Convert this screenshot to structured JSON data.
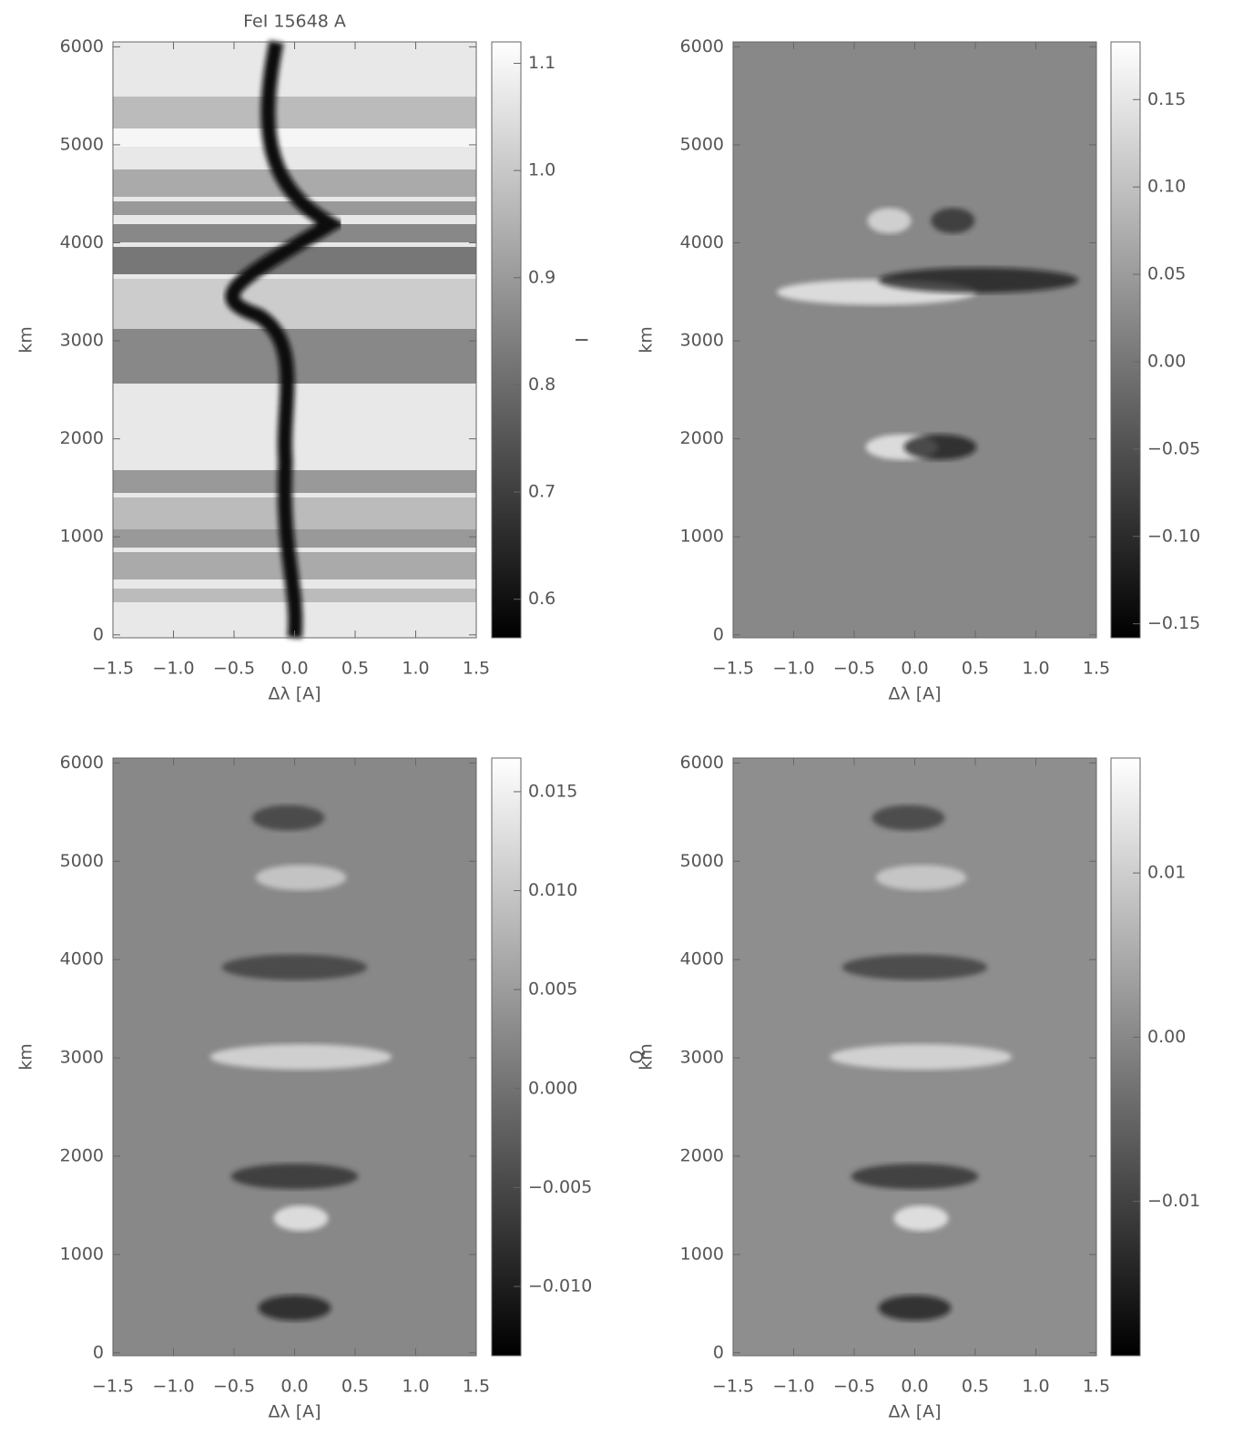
{
  "chart_data": [
    {
      "type": "heatmap",
      "title": "FeI 15648 A",
      "xlabel": "Δλ [A]",
      "ylabel": "km",
      "colorbar_label": "I",
      "xlim": [
        -1.5,
        1.5
      ],
      "xticks": [
        {
          "value": -1.5,
          "label": "−1.5"
        },
        {
          "value": -1,
          "label": "−1.0"
        },
        {
          "value": -0.5,
          "label": "−0.5"
        },
        {
          "value": 0,
          "label": "0.0"
        },
        {
          "value": 0.5,
          "label": "0.5"
        },
        {
          "value": 1,
          "label": "1.0"
        },
        1.5
      ],
      "ylim": [
        -30,
        6050
      ],
      "yticks": [
        0,
        1000,
        2000,
        3000,
        4000,
        5000,
        6000
      ],
      "clim": [
        0.564,
        1.12
      ],
      "cticks": [
        0.6,
        0.7,
        0.8,
        0.9,
        {
          "value": 1,
          "label": "1.0"
        },
        1.1
      ]
    },
    {
      "type": "heatmap",
      "xlabel": "Δλ [A]",
      "ylabel": "km",
      "xlim": [
        -1.5,
        1.5
      ],
      "xticks": [
        {
          "value": -1.5,
          "label": "−1.5"
        },
        {
          "value": -1,
          "label": "−1.0"
        },
        {
          "value": -0.5,
          "label": "−0.5"
        },
        {
          "value": 0,
          "label": "0.0"
        },
        {
          "value": 0.5,
          "label": "0.5"
        },
        {
          "value": 1,
          "label": "1.0"
        },
        1.5
      ],
      "ylim": [
        -30,
        6050
      ],
      "yticks": [
        0,
        1000,
        2000,
        3000,
        4000,
        5000,
        6000
      ],
      "clim": [
        -0.158,
        0.183
      ],
      "cticks": [
        {
          "value": -0.15,
          "label": "−0.15"
        },
        {
          "value": -0.1,
          "label": "−0.10"
        },
        {
          "value": -0.05,
          "label": "−0.05"
        },
        {
          "value": 0,
          "label": "0.00"
        },
        0.05,
        {
          "value": 0.1,
          "label": "0.10"
        },
        0.15
      ]
    },
    {
      "type": "heatmap",
      "xlabel": "Δλ [A]",
      "ylabel": "km",
      "xlim": [
        -1.5,
        1.5
      ],
      "xticks": [
        {
          "value": -1.5,
          "label": "−1.5"
        },
        {
          "value": -1,
          "label": "−1.0"
        },
        {
          "value": -0.5,
          "label": "−0.5"
        },
        {
          "value": 0,
          "label": "0.0"
        },
        {
          "value": 0.5,
          "label": "0.5"
        },
        {
          "value": 1,
          "label": "1.0"
        },
        1.5
      ],
      "ylim": [
        -30,
        6050
      ],
      "yticks": [
        0,
        1000,
        2000,
        3000,
        4000,
        5000,
        6000
      ],
      "clim": [
        -0.0135,
        0.0167
      ],
      "cticks": [
        {
          "value": -0.01,
          "label": "−0.010"
        },
        {
          "value": -0.005,
          "label": "−0.005"
        },
        {
          "value": 0,
          "label": "0.000"
        },
        0.005,
        {
          "value": 0.01,
          "label": "0.010"
        },
        0.015
      ]
    },
    {
      "type": "heatmap",
      "xlabel": "Δλ [A]",
      "ylabel": "km",
      "colorbar_label": "Q",
      "xlim": [
        -1.5,
        1.5
      ],
      "xticks": [
        {
          "value": -1.5,
          "label": "−1.5"
        },
        {
          "value": -1,
          "label": "−1.0"
        },
        {
          "value": -0.5,
          "label": "−0.5"
        },
        {
          "value": 0,
          "label": "0.0"
        },
        {
          "value": 0.5,
          "label": "0.5"
        },
        {
          "value": 1,
          "label": "1.0"
        },
        1.5
      ],
      "ylim": [
        -30,
        6050
      ],
      "yticks": [
        0,
        1000,
        2000,
        3000,
        4000,
        5000,
        6000
      ],
      "clim": [
        -0.0194,
        0.017
      ],
      "cticks": [
        {
          "value": -0.01,
          "label": "−0.01"
        },
        {
          "value": 0,
          "label": "0.00"
        },
        0.01
      ]
    }
  ]
}
